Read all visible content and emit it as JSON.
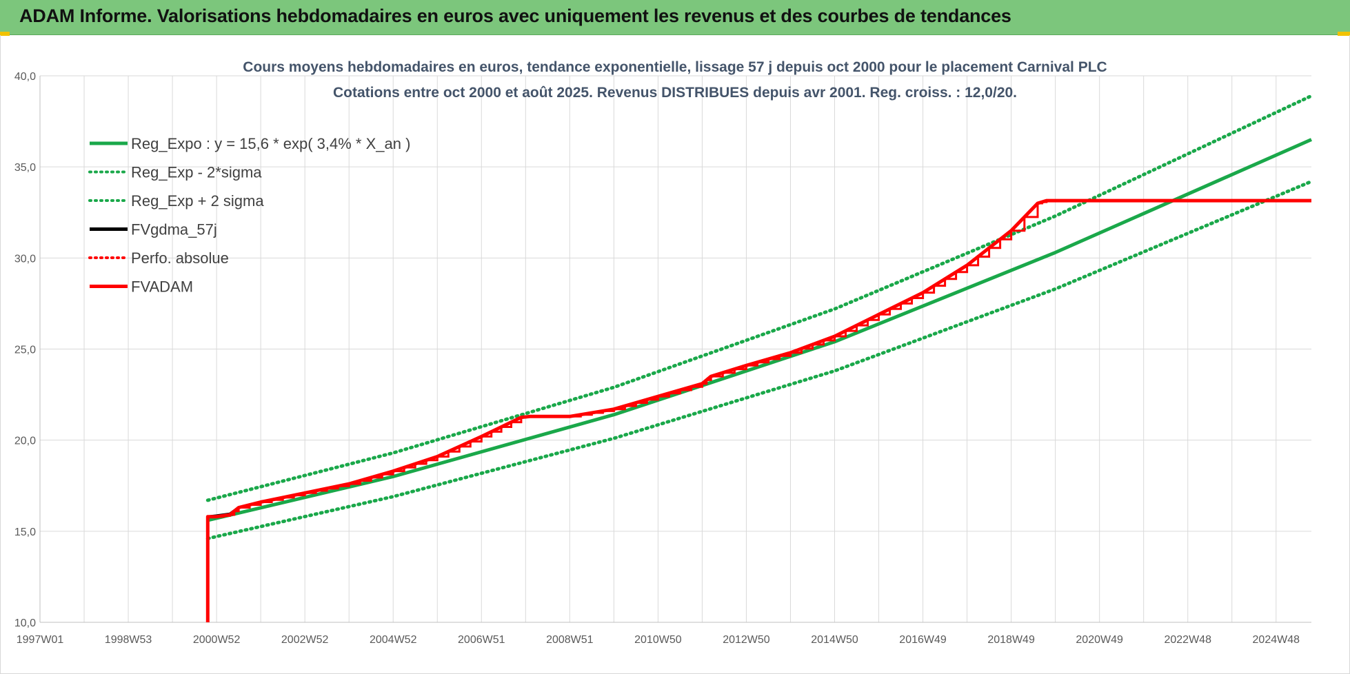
{
  "header": {
    "title": "ADAM Informe. Valorisations hebdomadaires en euros avec uniquement les revenus et des courbes de tendances"
  },
  "chart_data": {
    "type": "line",
    "title_line1": "Cours moyens hebdomadaires en euros, tendance exponentielle, lissage 57 j depuis oct 2000 pour le placement Carnival PLC",
    "title_line2": "Cotations entre oct 2000 et août 2025.  Revenus DISTRIBUES depuis avr 2001. Reg. croiss. : 12,0/20.",
    "xlabel": "",
    "ylabel": "",
    "xlim": [
      1997.0,
      2025.8
    ],
    "ylim": [
      10,
      40
    ],
    "y_ticks": [
      "10,0",
      "15,0",
      "20,0",
      "25,0",
      "30,0",
      "35,0",
      "40,0"
    ],
    "x_tick_labels": [
      "1997W01",
      "1998W53",
      "2000W52",
      "2002W52",
      "2004W52",
      "2006W51",
      "2008W51",
      "2010W50",
      "2012W50",
      "2014W50",
      "2016W49",
      "2018W49",
      "2020W49",
      "2022W48",
      "2024W48"
    ],
    "grid": true,
    "legend_position": "top-left",
    "series": [
      {
        "name": "Reg_Expo : y = 15,6 * exp( 3,4% *  X_an )",
        "color": "#1aa84a",
        "style": "solid",
        "x": [
          2000.8,
          2005,
          2010,
          2015,
          2020,
          2025.8
        ],
        "y": [
          15.6,
          18.0,
          21.4,
          25.4,
          30.3,
          36.5
        ]
      },
      {
        "name": "Reg_Exp - 2*sigma",
        "color": "#1aa84a",
        "style": "dotted",
        "x": [
          2000.8,
          2005,
          2010,
          2015,
          2020,
          2025.8
        ],
        "y": [
          14.6,
          16.9,
          20.1,
          23.8,
          28.3,
          34.2
        ]
      },
      {
        "name": "Reg_Exp + 2 sigma",
        "color": "#1aa84a",
        "style": "dotted",
        "x": [
          2000.8,
          2005,
          2010,
          2015,
          2020,
          2025.8
        ],
        "y": [
          16.7,
          19.3,
          22.9,
          27.2,
          32.3,
          38.9
        ]
      },
      {
        "name": "FVgdma_57j",
        "color": "#000000",
        "style": "solid",
        "x": [
          2000.8,
          2001.0,
          2001.3,
          2001.5,
          2002,
          2003,
          2004,
          2005,
          2006,
          2007,
          2007.9,
          2008.1,
          2009,
          2010,
          2011,
          2012,
          2012.2,
          2013,
          2014,
          2015,
          2016,
          2017,
          2018,
          2019,
          2019.6,
          2019.8,
          2025.8
        ],
        "y": [
          15.8,
          15.85,
          15.95,
          16.3,
          16.6,
          17.1,
          17.6,
          18.3,
          19.1,
          20.2,
          21.25,
          21.3,
          21.3,
          21.7,
          22.4,
          23.1,
          23.5,
          24.1,
          24.8,
          25.7,
          26.9,
          28.1,
          29.6,
          31.5,
          33.0,
          33.15,
          33.15
        ]
      },
      {
        "name": "Perfo. absolue",
        "color": "#ff0000",
        "style": "dotted",
        "x": [],
        "y": []
      },
      {
        "name": "FVADAM",
        "color": "#ff0000",
        "style": "solid",
        "x": [
          2000.8,
          2000.8,
          2001.0,
          2001.3,
          2001.5,
          2002,
          2003,
          2004,
          2005,
          2006,
          2007,
          2007.9,
          2008.1,
          2009,
          2010,
          2011,
          2012,
          2012.2,
          2013,
          2014,
          2015,
          2016,
          2017,
          2018,
          2019,
          2019.6,
          2019.8,
          2025.8
        ],
        "y": [
          10.0,
          15.8,
          15.8,
          15.9,
          16.3,
          16.6,
          17.1,
          17.6,
          18.3,
          19.1,
          20.2,
          21.25,
          21.3,
          21.3,
          21.7,
          22.4,
          23.1,
          23.5,
          24.1,
          24.8,
          25.7,
          26.9,
          28.1,
          29.6,
          31.5,
          33.0,
          33.15,
          33.15
        ]
      }
    ]
  }
}
